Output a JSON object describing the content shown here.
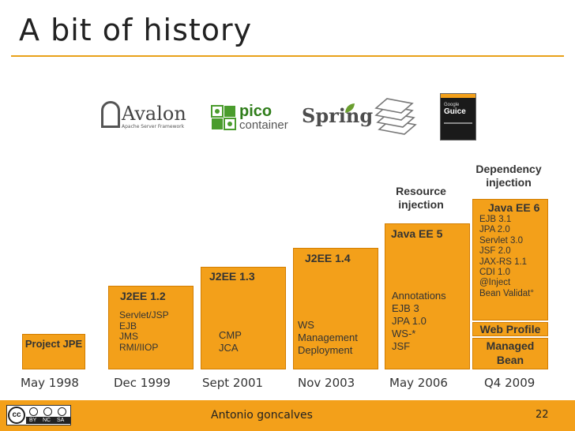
{
  "slide": {
    "title": "A bit of history",
    "page_number": "22"
  },
  "footer": {
    "author": "Antonio goncalves"
  },
  "license": {
    "badge": "cc",
    "labels": [
      "BY",
      "NC",
      "SA"
    ]
  },
  "logos": {
    "avalon": {
      "name": "Avalon",
      "tagline": "Apache Server Framework"
    },
    "pico": {
      "word1": "pico",
      "word2": "container"
    },
    "spring": {
      "name": "Spring"
    },
    "guice": {
      "line1": "Google",
      "line2": "Guice"
    }
  },
  "timeline": [
    {
      "date": "May 1998",
      "label": "Project JPE",
      "notes": []
    },
    {
      "date": "Dec 1999",
      "label": "J2EE 1.2",
      "notes": [
        "Servlet/JSP",
        "EJB",
        "JMS",
        "RMI/IIOP"
      ]
    },
    {
      "date": "Sept 2001",
      "label": "J2EE 1.3",
      "notes": [
        "CMP",
        "JCA"
      ]
    },
    {
      "date": "Nov 2003",
      "label": "J2EE 1.4",
      "notes": [
        "WS",
        "Management",
        "Deployment"
      ]
    },
    {
      "date": "May 2006",
      "label": "Java EE 5",
      "notes": [
        "Annotations",
        "EJB 3",
        "JPA 1.0",
        "WS-*",
        "JSF"
      ]
    },
    {
      "date": "Q4 2009",
      "label": "Java EE 6",
      "notes": [
        "EJB 3.1",
        "JPA 2.0",
        "Servlet 3.0",
        "JSF 2.0",
        "JAX-RS 1.1",
        "CDI 1.0",
        "@Inject",
        "Bean Validat°"
      ]
    }
  ],
  "javaee6_extras": {
    "web_profile": "Web Profile",
    "managed_bean": "Managed Bean"
  },
  "annotations": {
    "resource": "Resource injection",
    "dependency": "Dependency injection"
  },
  "colors": {
    "accent": "#f3a01a",
    "accent_dark": "#d27d00"
  }
}
